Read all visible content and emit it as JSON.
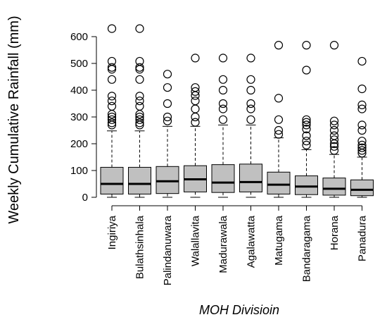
{
  "chart_data": {
    "type": "boxplot",
    "xlabel": "MOH Divisioin",
    "ylabel": "Weekly Cumulative Rainfall (mm)",
    "ylim": [
      0,
      630
    ],
    "yticks": [
      0,
      100,
      200,
      300,
      400,
      500,
      600
    ],
    "box_color": "#c0c0c0",
    "categories": [
      "Ingiriya",
      "Bulathsinhala",
      "Palindanuwara",
      "Walallavita",
      "Madurawala",
      "Agalawatta",
      "Matugama",
      "Bandaragama",
      "Horana",
      "Panadura"
    ],
    "boxes": [
      {
        "min": 0,
        "q1": 12,
        "median": 50,
        "q3": 112,
        "max": 248,
        "outliers": [
          270,
          278,
          290,
          300,
          310,
          340,
          360,
          378,
          440,
          478,
          485,
          508,
          630
        ]
      },
      {
        "min": 0,
        "q1": 12,
        "median": 50,
        "q3": 112,
        "max": 248,
        "outliers": [
          270,
          278,
          290,
          300,
          310,
          340,
          360,
          378,
          440,
          478,
          485,
          508,
          630
        ]
      },
      {
        "min": 0,
        "q1": 14,
        "median": 60,
        "q3": 115,
        "max": 265,
        "outliers": [
          285,
          300,
          350,
          410,
          460
        ]
      },
      {
        "min": 0,
        "q1": 20,
        "median": 67,
        "q3": 118,
        "max": 265,
        "outliers": [
          280,
          300,
          330,
          360,
          380,
          395,
          410,
          520
        ]
      },
      {
        "min": 0,
        "q1": 18,
        "median": 55,
        "q3": 122,
        "max": 270,
        "outliers": [
          290,
          330,
          350,
          400,
          440,
          520
        ]
      },
      {
        "min": 0,
        "q1": 20,
        "median": 57,
        "q3": 124,
        "max": 270,
        "outliers": [
          290,
          330,
          350,
          400,
          440,
          520
        ]
      },
      {
        "min": 0,
        "q1": 12,
        "median": 47,
        "q3": 94,
        "max": 222,
        "outliers": [
          235,
          250,
          290,
          370,
          568
        ]
      },
      {
        "min": 0,
        "q1": 10,
        "median": 40,
        "q3": 80,
        "max": 178,
        "outliers": [
          195,
          210,
          230,
          255,
          270,
          280,
          290,
          475,
          568
        ]
      },
      {
        "min": 0,
        "q1": 8,
        "median": 32,
        "q3": 72,
        "max": 160,
        "outliers": [
          175,
          190,
          200,
          215,
          230,
          250,
          270,
          285,
          568
        ]
      },
      {
        "min": 0,
        "q1": 6,
        "median": 28,
        "q3": 65,
        "max": 150,
        "outliers": [
          165,
          175,
          185,
          195,
          210,
          250,
          270,
          330,
          345,
          405,
          508
        ]
      }
    ]
  }
}
